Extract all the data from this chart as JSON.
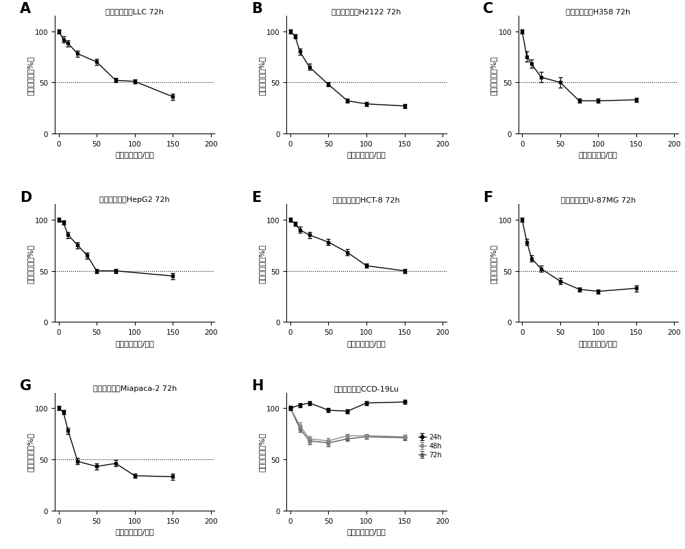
{
  "panels": [
    {
      "label": "A",
      "title": "麦黄酮作用于LLC 72h",
      "x": [
        0,
        6.25,
        12.5,
        25,
        50,
        75,
        100,
        150
      ],
      "y": [
        100,
        92,
        88,
        78,
        70,
        52,
        51,
        36
      ],
      "yerr": [
        2,
        3,
        3,
        3,
        3,
        2,
        2,
        3
      ],
      "has_hline": true
    },
    {
      "label": "B",
      "title": "麦黄酮作用于H2122 72h",
      "x": [
        0,
        6.25,
        12.5,
        25,
        50,
        75,
        100,
        150
      ],
      "y": [
        100,
        95,
        80,
        65,
        48,
        32,
        29,
        27
      ],
      "yerr": [
        2,
        2,
        3,
        3,
        2,
        2,
        2,
        2
      ],
      "has_hline": true
    },
    {
      "label": "C",
      "title": "麦黄酮作用于H358 72h",
      "x": [
        0,
        6.25,
        12.5,
        25,
        50,
        75,
        100,
        150
      ],
      "y": [
        100,
        75,
        68,
        55,
        50,
        32,
        32,
        33
      ],
      "yerr": [
        2,
        5,
        4,
        5,
        5,
        2,
        2,
        2
      ],
      "has_hline": true
    },
    {
      "label": "D",
      "title": "麦黄酮作用于HepG2 72h",
      "x": [
        0,
        6.25,
        12.5,
        25,
        37.5,
        50,
        75,
        150
      ],
      "y": [
        100,
        97,
        85,
        75,
        65,
        50,
        50,
        45
      ],
      "yerr": [
        2,
        2,
        3,
        3,
        3,
        2,
        2,
        3
      ],
      "has_hline": true
    },
    {
      "label": "E",
      "title": "麦黄酮作用于HCT-8 72h",
      "x": [
        0,
        6.25,
        12.5,
        25,
        50,
        75,
        100,
        150
      ],
      "y": [
        100,
        96,
        90,
        85,
        78,
        68,
        55,
        50
      ],
      "yerr": [
        2,
        2,
        3,
        3,
        3,
        3,
        2,
        2
      ],
      "has_hline": true
    },
    {
      "label": "F",
      "title": "麦黄酮作用于U-87MG 72h",
      "x": [
        0,
        6.25,
        12.5,
        25,
        50,
        75,
        100,
        150
      ],
      "y": [
        100,
        78,
        62,
        52,
        40,
        32,
        30,
        33
      ],
      "yerr": [
        2,
        3,
        3,
        3,
        3,
        2,
        2,
        3
      ],
      "has_hline": true
    },
    {
      "label": "G",
      "title": "麦黄酮作用于Miapaca-2 72h",
      "x": [
        0,
        6.25,
        12.5,
        25,
        50,
        75,
        100,
        150
      ],
      "y": [
        100,
        96,
        78,
        48,
        43,
        46,
        34,
        33
      ],
      "yerr": [
        2,
        2,
        3,
        3,
        3,
        3,
        2,
        3
      ],
      "has_hline": true
    },
    {
      "label": "H",
      "title": "麦黄酮作用于CCD-19Lu",
      "x": [
        0,
        12.5,
        25,
        50,
        75,
        100,
        150
      ],
      "y_24h": [
        100,
        103,
        105,
        98,
        97,
        105,
        106
      ],
      "y_48h": [
        100,
        83,
        70,
        68,
        73,
        73,
        72
      ],
      "y_72h": [
        100,
        80,
        68,
        66,
        70,
        72,
        71
      ],
      "yerr_24h": [
        2,
        2,
        2,
        2,
        2,
        2,
        2
      ],
      "yerr_48h": [
        2,
        3,
        3,
        3,
        2,
        2,
        2
      ],
      "yerr_72h": [
        2,
        3,
        3,
        3,
        2,
        2,
        2
      ],
      "has_hline": false
    }
  ],
  "xlabel": "浓度（微摩尔/升）",
  "ylabel": "细胞存活率（%）",
  "hline_y": 50,
  "hline_style": ":",
  "hline_color": "black",
  "marker": "s",
  "marker_color": "black",
  "line_color": "black",
  "xlim": [
    -5,
    205
  ],
  "ylim": [
    0,
    115
  ],
  "xticks": [
    0,
    50,
    100,
    150,
    200
  ],
  "yticks": [
    0,
    50,
    100
  ],
  "background_color": "white"
}
